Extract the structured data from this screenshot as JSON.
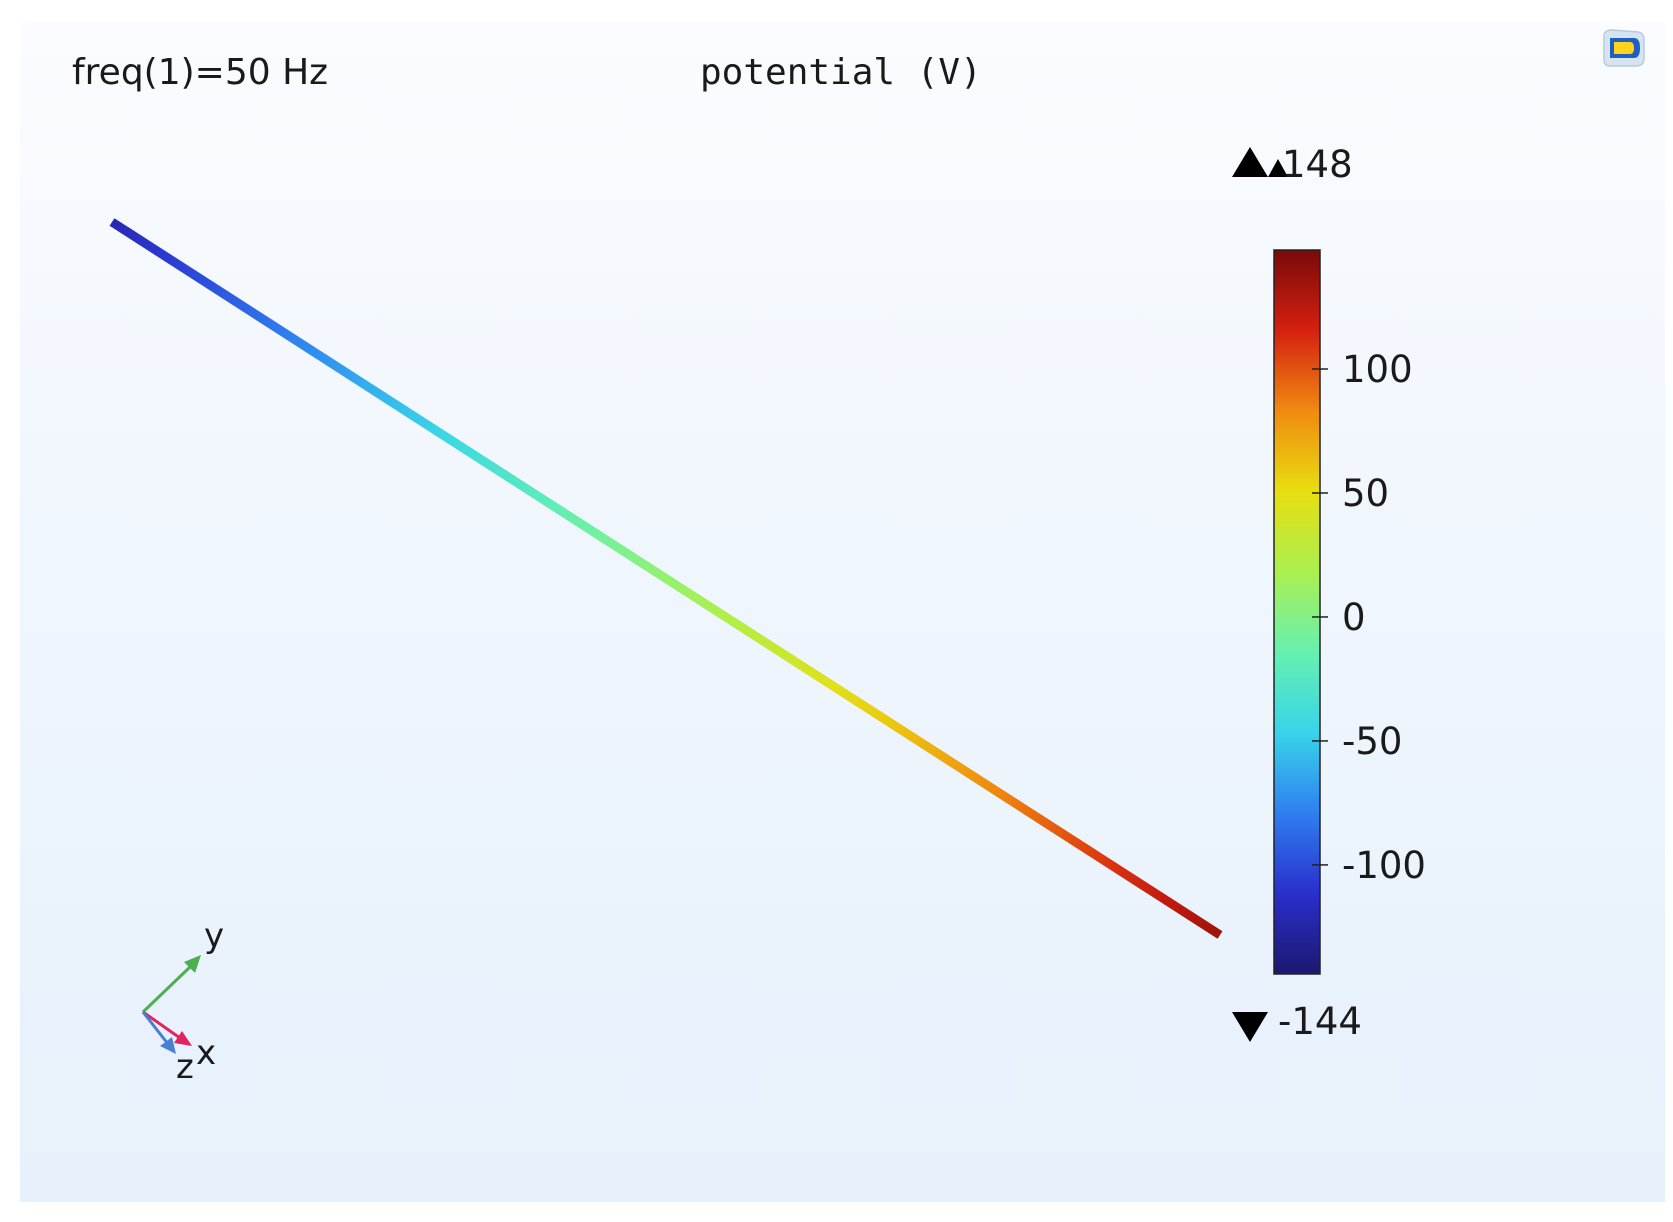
{
  "header": {
    "parameter_label": "freq(1)=50 Hz",
    "plot_title": "potential (V)"
  },
  "toolbar": {
    "logo_icon": "comsol-logo-icon"
  },
  "colorbar": {
    "max_label": "148",
    "min_label": "-144",
    "max": 148,
    "min": -144,
    "ticks": [
      {
        "value": 100,
        "label": "100"
      },
      {
        "value": 50,
        "label": "50"
      },
      {
        "value": 0,
        "label": "0"
      },
      {
        "value": -50,
        "label": "-50"
      },
      {
        "value": -100,
        "label": "-100"
      }
    ],
    "colormap": [
      "#1c1870",
      "#2a2fcc",
      "#2f7ff0",
      "#38d4ea",
      "#66f0b0",
      "#aaf050",
      "#e8de10",
      "#f08a10",
      "#d52010",
      "#7a0a0a"
    ]
  },
  "line_plot": {
    "start_value": -120,
    "end_value": 135
  },
  "axis_triad": {
    "x_label": "x",
    "y_label": "y",
    "z_label": "z",
    "x_color": "#e0245e",
    "y_color": "#4caf50",
    "z_color": "#4a7fd4"
  }
}
